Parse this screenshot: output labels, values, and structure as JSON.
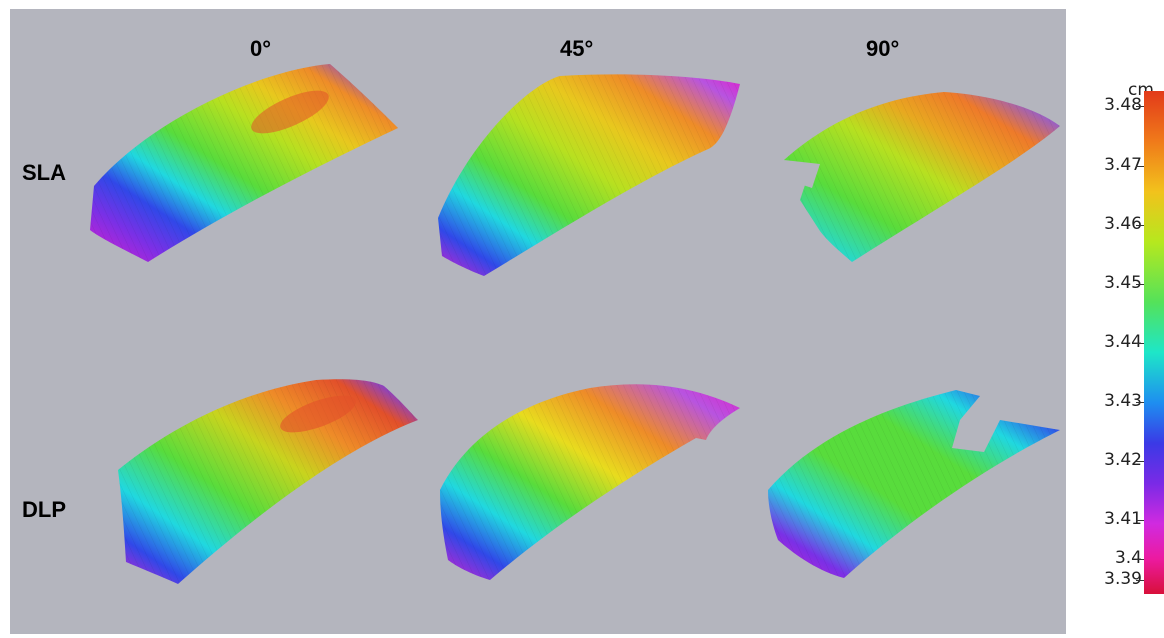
{
  "columns": [
    "0°",
    "45°",
    "90°"
  ],
  "rows": [
    "SLA",
    "DLP"
  ],
  "colorbar": {
    "unit": "cm",
    "ticks": [
      "3.48",
      "3.47",
      "3.46",
      "3.45",
      "3.44",
      "3.43",
      "3.42",
      "3.41",
      "3.4",
      "3.39"
    ]
  },
  "surface_colors": {
    "magenta": "#e01ecc",
    "blue": "#3048e8",
    "cyan": "#20d8e0",
    "green": "#58dc3c",
    "yellow": "#e8dc1e",
    "orange": "#ee8c28",
    "red": "#e2502a"
  }
}
